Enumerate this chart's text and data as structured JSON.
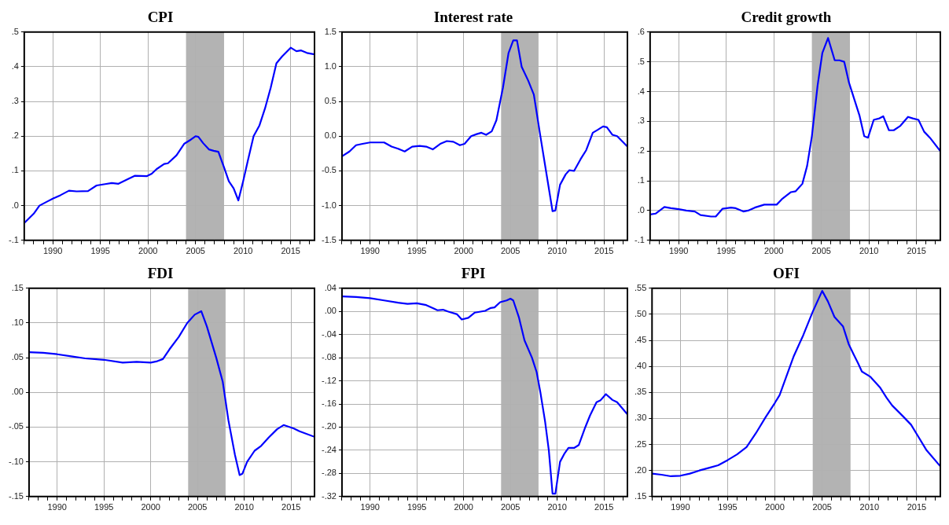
{
  "chart_data": [
    {
      "type": "line",
      "title": "CPI",
      "xlim": [
        1987,
        2017.5
      ],
      "ylim": [
        -0.1,
        0.5
      ],
      "yticks": [
        {
          "value": -0.1,
          "label": "-.1"
        },
        {
          "value": 0,
          "label": ".0"
        },
        {
          "value": 0.1,
          "label": ".1"
        },
        {
          "value": 0.2,
          "label": ".2"
        },
        {
          "value": 0.3,
          "label": ".3"
        },
        {
          "value": 0.4,
          "label": ".4"
        },
        {
          "value": 0.5,
          "label": ".5"
        }
      ],
      "xticks": [
        {
          "value": 1987,
          "label": null
        },
        {
          "value": 1988,
          "label": null
        },
        {
          "value": 1989,
          "label": null
        },
        1990,
        {
          "value": 1991,
          "label": null
        },
        {
          "value": 1992,
          "label": null
        },
        {
          "value": 1993,
          "label": null
        },
        {
          "value": 1994,
          "label": null
        },
        1995,
        {
          "value": 1996,
          "label": null
        },
        {
          "value": 1997,
          "label": null
        },
        {
          "value": 1998,
          "label": null
        },
        {
          "value": 1999,
          "label": null
        },
        2000,
        {
          "value": 2001,
          "label": null
        },
        {
          "value": 2002,
          "label": null
        },
        {
          "value": 2003,
          "label": null
        },
        {
          "value": 2004,
          "label": null
        },
        2005,
        {
          "value": 2006,
          "label": null
        },
        {
          "value": 2007,
          "label": null
        },
        {
          "value": 2008,
          "label": null
        },
        {
          "value": 2009,
          "label": null
        },
        2010,
        {
          "value": 2011,
          "label": null
        },
        {
          "value": 2012,
          "label": null
        },
        {
          "value": 2013,
          "label": null
        },
        {
          "value": 2014,
          "label": null
        },
        2015,
        {
          "value": 2016,
          "label": null
        },
        {
          "value": 2017,
          "label": null
        }
      ],
      "grid": true,
      "legend": false,
      "marker": "none",
      "line_style": "solid",
      "bands": [
        {
          "axis": "x",
          "from": 2004,
          "to": 2008,
          "color": "#b3b3b3"
        }
      ],
      "series": [
        {
          "color": "#0000ff",
          "x": [
            1987,
            1988,
            1988.6,
            1989.5,
            1990,
            1990.8,
            1991.7,
            1992.5,
            1993.7,
            1994.6,
            1995.5,
            1996.2,
            1996.9,
            1998,
            1998.6,
            1999.9,
            2000.4,
            2000.9,
            2001.7,
            2002.1,
            2003,
            2003.8,
            2004.5,
            2005,
            2005.3,
            2005.8,
            2006.4,
            2006.9,
            2007.4,
            2008,
            2008.5,
            2009,
            2009.5,
            2010,
            2010.5,
            2011.1,
            2011.7,
            2012.3,
            2012.9,
            2013.5,
            2014.1,
            2015,
            2015.6,
            2016.1,
            2016.7,
            2017.5
          ],
          "values": [
            -0.05,
            -0.023,
            0,
            0.013,
            0.02,
            0.03,
            0.043,
            0.041,
            0.042,
            0.058,
            0.062,
            0.065,
            0.063,
            0.078,
            0.086,
            0.085,
            0.092,
            0.105,
            0.12,
            0.122,
            0.145,
            0.178,
            0.19,
            0.2,
            0.198,
            0.18,
            0.162,
            0.158,
            0.155,
            0.11,
            0.07,
            0.05,
            0.015,
            0.07,
            0.13,
            0.2,
            0.23,
            0.28,
            0.34,
            0.41,
            0.43,
            0.455,
            0.445,
            0.447,
            0.44,
            0.436
          ]
        }
      ]
    },
    {
      "type": "line",
      "title": "Interest rate",
      "xlim": [
        1987,
        2017.5
      ],
      "ylim": [
        -1.5,
        1.5
      ],
      "yticks": [
        {
          "value": -1.5,
          "label": "-1.5"
        },
        {
          "value": -1,
          "label": "-1.0"
        },
        {
          "value": -0.5,
          "label": "-0.5"
        },
        {
          "value": 0,
          "label": "0.0"
        },
        {
          "value": 0.5,
          "label": "0.5"
        },
        {
          "value": 1,
          "label": "1.0"
        },
        {
          "value": 1.5,
          "label": "1.5"
        }
      ],
      "xticks": [
        {
          "value": 1987,
          "label": null
        },
        {
          "value": 1988,
          "label": null
        },
        {
          "value": 1989,
          "label": null
        },
        1990,
        {
          "value": 1991,
          "label": null
        },
        {
          "value": 1992,
          "label": null
        },
        {
          "value": 1993,
          "label": null
        },
        {
          "value": 1994,
          "label": null
        },
        1995,
        {
          "value": 1996,
          "label": null
        },
        {
          "value": 1997,
          "label": null
        },
        {
          "value": 1998,
          "label": null
        },
        {
          "value": 1999,
          "label": null
        },
        2000,
        {
          "value": 2001,
          "label": null
        },
        {
          "value": 2002,
          "label": null
        },
        {
          "value": 2003,
          "label": null
        },
        {
          "value": 2004,
          "label": null
        },
        2005,
        {
          "value": 2006,
          "label": null
        },
        {
          "value": 2007,
          "label": null
        },
        {
          "value": 2008,
          "label": null
        },
        {
          "value": 2009,
          "label": null
        },
        2010,
        {
          "value": 2011,
          "label": null
        },
        {
          "value": 2012,
          "label": null
        },
        {
          "value": 2013,
          "label": null
        },
        {
          "value": 2014,
          "label": null
        },
        2015,
        {
          "value": 2016,
          "label": null
        },
        {
          "value": 2017,
          "label": null
        }
      ],
      "grid": true,
      "legend": false,
      "marker": "none",
      "line_style": "solid",
      "bands": [
        {
          "axis": "x",
          "from": 2004,
          "to": 2008,
          "color": "#b3b3b3"
        }
      ],
      "series": [
        {
          "color": "#0000ff",
          "x": [
            1987,
            1987.8,
            1988.5,
            1989.2,
            1990,
            1990.8,
            1991.5,
            1992.3,
            1993,
            1993.7,
            1994.5,
            1995.3,
            1996,
            1996.7,
            1997.5,
            1998.2,
            1998.9,
            1999.6,
            2000.1,
            2000.8,
            2001.4,
            2001.9,
            2002.4,
            2003,
            2003.5,
            2004.2,
            2004.8,
            2005.3,
            2005.7,
            2006.2,
            2006.9,
            2007.5,
            2008.2,
            2008.8,
            2009.5,
            2009.8,
            2010.3,
            2010.9,
            2011.3,
            2011.8,
            2012.5,
            2013.1,
            2013.8,
            2014.3,
            2014.9,
            2015.3,
            2015.9,
            2016.4,
            2017.5
          ],
          "values": [
            -0.29,
            -0.22,
            -0.13,
            -0.11,
            -0.09,
            -0.09,
            -0.09,
            -0.15,
            -0.18,
            -0.22,
            -0.15,
            -0.14,
            -0.15,
            -0.19,
            -0.11,
            -0.07,
            -0.08,
            -0.13,
            -0.11,
            0,
            0.03,
            0.05,
            0.02,
            0.07,
            0.23,
            0.7,
            1.2,
            1.38,
            1.38,
            1,
            0.8,
            0.6,
            0,
            -0.5,
            -1.08,
            -1.07,
            -0.7,
            -0.55,
            -0.49,
            -0.5,
            -0.33,
            -0.2,
            0.05,
            0.09,
            0.14,
            0.13,
            0.02,
            0,
            -0.15
          ]
        }
      ]
    },
    {
      "type": "line",
      "title": "Credit growth",
      "xlim": [
        1987,
        2017.5
      ],
      "ylim": [
        -0.1,
        0.6
      ],
      "yticks": [
        {
          "value": -0.1,
          "label": "-.1"
        },
        {
          "value": 0,
          "label": ".0"
        },
        {
          "value": 0.1,
          "label": ".1"
        },
        {
          "value": 0.2,
          "label": ".2"
        },
        {
          "value": 0.3,
          "label": ".3"
        },
        {
          "value": 0.4,
          "label": ".4"
        },
        {
          "value": 0.5,
          "label": ".5"
        },
        {
          "value": 0.6,
          "label": ".6"
        }
      ],
      "xticks": [
        {
          "value": 1987,
          "label": null
        },
        {
          "value": 1988,
          "label": null
        },
        {
          "value": 1989,
          "label": null
        },
        1990,
        {
          "value": 1991,
          "label": null
        },
        {
          "value": 1992,
          "label": null
        },
        {
          "value": 1993,
          "label": null
        },
        {
          "value": 1994,
          "label": null
        },
        1995,
        {
          "value": 1996,
          "label": null
        },
        {
          "value": 1997,
          "label": null
        },
        {
          "value": 1998,
          "label": null
        },
        {
          "value": 1999,
          "label": null
        },
        2000,
        {
          "value": 2001,
          "label": null
        },
        {
          "value": 2002,
          "label": null
        },
        {
          "value": 2003,
          "label": null
        },
        {
          "value": 2004,
          "label": null
        },
        2005,
        {
          "value": 2006,
          "label": null
        },
        {
          "value": 2007,
          "label": null
        },
        {
          "value": 2008,
          "label": null
        },
        {
          "value": 2009,
          "label": null
        },
        2010,
        {
          "value": 2011,
          "label": null
        },
        {
          "value": 2012,
          "label": null
        },
        {
          "value": 2013,
          "label": null
        },
        {
          "value": 2014,
          "label": null
        },
        2015,
        {
          "value": 2016,
          "label": null
        },
        {
          "value": 2017,
          "label": null
        }
      ],
      "grid": true,
      "legend": false,
      "marker": "none",
      "line_style": "solid",
      "bands": [
        {
          "axis": "x",
          "from": 2004,
          "to": 2008,
          "color": "#b3b3b3"
        }
      ],
      "series": [
        {
          "color": "#0000ff",
          "x": [
            1987,
            1987.6,
            1988.5,
            1989.2,
            1990,
            1990.8,
            1991.7,
            1992.3,
            1993.4,
            1993.9,
            1994.6,
            1995.5,
            1996,
            1996.8,
            1997.3,
            1998,
            1999,
            2000.3,
            2000.9,
            2001.8,
            2002.3,
            2003,
            2003.5,
            2004,
            2004.6,
            2005.1,
            2005.7,
            2006.4,
            2006.9,
            2007.4,
            2007.9,
            2008.5,
            2009,
            2009.5,
            2009.9,
            2010.5,
            2011.1,
            2011.5,
            2012.1,
            2012.6,
            2013.3,
            2014.1,
            2014.6,
            2015.2,
            2015.8,
            2016.4,
            2017.5
          ],
          "values": [
            -0.013,
            -0.01,
            0.012,
            0.008,
            0.005,
            0,
            -0.003,
            -0.015,
            -0.02,
            -0.02,
            0.006,
            0.01,
            0.008,
            -0.003,
            0,
            0.01,
            0.02,
            0.02,
            0.04,
            0.062,
            0.065,
            0.09,
            0.15,
            0.25,
            0.42,
            0.53,
            0.58,
            0.505,
            0.505,
            0.5,
            0.43,
            0.37,
            0.32,
            0.25,
            0.245,
            0.305,
            0.31,
            0.317,
            0.27,
            0.27,
            0.285,
            0.315,
            0.31,
            0.305,
            0.265,
            0.245,
            0.2
          ]
        }
      ]
    },
    {
      "type": "line",
      "title": "FDI",
      "xlim": [
        1987,
        2017.5
      ],
      "ylim": [
        -0.15,
        0.15
      ],
      "yticks": [
        {
          "value": -0.15,
          "label": "-.15"
        },
        {
          "value": -0.1,
          "label": "-.10"
        },
        {
          "value": -0.05,
          "label": "-.05"
        },
        {
          "value": 0,
          "label": ".00"
        },
        {
          "value": 0.05,
          "label": ".05"
        },
        {
          "value": 0.1,
          "label": ".10"
        },
        {
          "value": 0.15,
          "label": ".15"
        }
      ],
      "xticks": [
        {
          "value": 1987,
          "label": null
        },
        {
          "value": 1988,
          "label": null
        },
        {
          "value": 1989,
          "label": null
        },
        1990,
        {
          "value": 1991,
          "label": null
        },
        {
          "value": 1992,
          "label": null
        },
        {
          "value": 1993,
          "label": null
        },
        {
          "value": 1994,
          "label": null
        },
        1995,
        {
          "value": 1996,
          "label": null
        },
        {
          "value": 1997,
          "label": null
        },
        {
          "value": 1998,
          "label": null
        },
        {
          "value": 1999,
          "label": null
        },
        2000,
        {
          "value": 2001,
          "label": null
        },
        {
          "value": 2002,
          "label": null
        },
        {
          "value": 2003,
          "label": null
        },
        {
          "value": 2004,
          "label": null
        },
        2005,
        {
          "value": 2006,
          "label": null
        },
        {
          "value": 2007,
          "label": null
        },
        {
          "value": 2008,
          "label": null
        },
        {
          "value": 2009,
          "label": null
        },
        2010,
        {
          "value": 2011,
          "label": null
        },
        {
          "value": 2012,
          "label": null
        },
        {
          "value": 2013,
          "label": null
        },
        {
          "value": 2014,
          "label": null
        },
        2015,
        {
          "value": 2016,
          "label": null
        },
        {
          "value": 2017,
          "label": null
        }
      ],
      "grid": true,
      "legend": false,
      "marker": "none",
      "line_style": "solid",
      "bands": [
        {
          "axis": "x",
          "from": 2004,
          "to": 2008,
          "color": "#b3b3b3"
        }
      ],
      "series": [
        {
          "color": "#0000ff",
          "x": [
            1987,
            1988.5,
            1990,
            1991.5,
            1993,
            1995,
            1997,
            1998.5,
            2000,
            2000.7,
            2001.3,
            2002,
            2003,
            2003.9,
            2004.7,
            2005.4,
            2006,
            2007,
            2007.7,
            2008.3,
            2009,
            2009.5,
            2009.8,
            2010.3,
            2011.1,
            2011.8,
            2012.6,
            2013.5,
            2014.2,
            2015.3,
            2015.9,
            2017.5
          ],
          "values": [
            0.058,
            0.057,
            0.055,
            0.052,
            0.049,
            0.047,
            0.043,
            0.044,
            0.043,
            0.045,
            0.048,
            0.062,
            0.08,
            0.1,
            0.112,
            0.117,
            0.095,
            0.05,
            0.015,
            -0.04,
            -0.09,
            -0.119,
            -0.117,
            -0.1,
            -0.084,
            -0.077,
            -0.065,
            -0.053,
            -0.047,
            -0.052,
            -0.056,
            -0.064
          ]
        }
      ]
    },
    {
      "type": "line",
      "title": "FPI",
      "xlim": [
        1987,
        2017.5
      ],
      "ylim": [
        -0.32,
        0.04
      ],
      "yticks": [
        {
          "value": -0.32,
          "label": "-.32"
        },
        {
          "value": -0.28,
          "label": "-.28"
        },
        {
          "value": -0.24,
          "label": "-.24"
        },
        {
          "value": -0.2,
          "label": "-.20"
        },
        {
          "value": -0.16,
          "label": "-.16"
        },
        {
          "value": -0.12,
          "label": "-.12"
        },
        {
          "value": -0.08,
          "label": "-.08"
        },
        {
          "value": -0.04,
          "label": "-.04"
        },
        {
          "value": 0,
          "label": ".00"
        },
        {
          "value": 0.04,
          "label": ".04"
        }
      ],
      "xticks": [
        {
          "value": 1987,
          "label": null
        },
        {
          "value": 1988,
          "label": null
        },
        {
          "value": 1989,
          "label": null
        },
        1990,
        {
          "value": 1991,
          "label": null
        },
        {
          "value": 1992,
          "label": null
        },
        {
          "value": 1993,
          "label": null
        },
        {
          "value": 1994,
          "label": null
        },
        1995,
        {
          "value": 1996,
          "label": null
        },
        {
          "value": 1997,
          "label": null
        },
        {
          "value": 1998,
          "label": null
        },
        {
          "value": 1999,
          "label": null
        },
        2000,
        {
          "value": 2001,
          "label": null
        },
        {
          "value": 2002,
          "label": null
        },
        {
          "value": 2003,
          "label": null
        },
        {
          "value": 2004,
          "label": null
        },
        2005,
        {
          "value": 2006,
          "label": null
        },
        {
          "value": 2007,
          "label": null
        },
        {
          "value": 2008,
          "label": null
        },
        {
          "value": 2009,
          "label": null
        },
        2010,
        {
          "value": 2011,
          "label": null
        },
        {
          "value": 2012,
          "label": null
        },
        {
          "value": 2013,
          "label": null
        },
        {
          "value": 2014,
          "label": null
        },
        2015,
        {
          "value": 2016,
          "label": null
        },
        {
          "value": 2017,
          "label": null
        }
      ],
      "grid": true,
      "legend": false,
      "marker": "none",
      "line_style": "solid",
      "bands": [
        {
          "axis": "x",
          "from": 2004,
          "to": 2008,
          "color": "#b3b3b3"
        }
      ],
      "series": [
        {
          "color": "#0000ff",
          "x": [
            1987,
            1988.5,
            1990,
            1991.5,
            1993,
            1994,
            1995,
            1996,
            1996.8,
            1997.2,
            1997.8,
            1998.3,
            1999.3,
            1999.8,
            2000.5,
            2001.2,
            2002.3,
            2002.9,
            2003.3,
            2003.9,
            2004.6,
            2005,
            2005.3,
            2005.9,
            2006.5,
            2007.3,
            2007.8,
            2008.2,
            2008.7,
            2009.1,
            2009.5,
            2009.8,
            2010.3,
            2010.8,
            2011.2,
            2011.8,
            2012.3,
            2013,
            2013.5,
            2014.2,
            2014.6,
            2015.2,
            2015.9,
            2016.4,
            2017.5
          ],
          "values": [
            0.026,
            0.025,
            0.023,
            0.019,
            0.015,
            0.013,
            0.014,
            0.011,
            0.005,
            0.002,
            0.003,
            0,
            -0.005,
            -0.014,
            -0.011,
            -0.002,
            0.001,
            0.006,
            0.007,
            0.016,
            0.019,
            0.022,
            0.019,
            -0.01,
            -0.05,
            -0.08,
            -0.105,
            -0.14,
            -0.19,
            -0.24,
            -0.315,
            -0.315,
            -0.26,
            -0.245,
            -0.236,
            -0.236,
            -0.231,
            -0.2,
            -0.18,
            -0.157,
            -0.154,
            -0.143,
            -0.153,
            -0.157,
            -0.178
          ]
        }
      ]
    },
    {
      "type": "line",
      "title": "OFI",
      "xlim": [
        1987,
        2017.5
      ],
      "ylim": [
        0.15,
        0.55
      ],
      "yticks": [
        {
          "value": 0.15,
          "label": ".15"
        },
        {
          "value": 0.2,
          "label": ".20"
        },
        {
          "value": 0.25,
          "label": ".25"
        },
        {
          "value": 0.3,
          "label": ".30"
        },
        {
          "value": 0.35,
          "label": ".35"
        },
        {
          "value": 0.4,
          "label": ".40"
        },
        {
          "value": 0.45,
          "label": ".45"
        },
        {
          "value": 0.5,
          "label": ".50"
        },
        {
          "value": 0.55,
          "label": ".55"
        }
      ],
      "xticks": [
        {
          "value": 1987,
          "label": null
        },
        {
          "value": 1988,
          "label": null
        },
        {
          "value": 1989,
          "label": null
        },
        1990,
        {
          "value": 1991,
          "label": null
        },
        {
          "value": 1992,
          "label": null
        },
        {
          "value": 1993,
          "label": null
        },
        {
          "value": 1994,
          "label": null
        },
        1995,
        {
          "value": 1996,
          "label": null
        },
        {
          "value": 1997,
          "label": null
        },
        {
          "value": 1998,
          "label": null
        },
        {
          "value": 1999,
          "label": null
        },
        2000,
        {
          "value": 2001,
          "label": null
        },
        {
          "value": 2002,
          "label": null
        },
        {
          "value": 2003,
          "label": null
        },
        {
          "value": 2004,
          "label": null
        },
        2005,
        {
          "value": 2006,
          "label": null
        },
        {
          "value": 2007,
          "label": null
        },
        {
          "value": 2008,
          "label": null
        },
        {
          "value": 2009,
          "label": null
        },
        2010,
        {
          "value": 2011,
          "label": null
        },
        {
          "value": 2012,
          "label": null
        },
        {
          "value": 2013,
          "label": null
        },
        {
          "value": 2014,
          "label": null
        },
        2015,
        {
          "value": 2016,
          "label": null
        },
        {
          "value": 2017,
          "label": null
        }
      ],
      "grid": true,
      "legend": false,
      "marker": "none",
      "line_style": "solid",
      "bands": [
        {
          "axis": "x",
          "from": 2004,
          "to": 2008,
          "color": "#b3b3b3"
        }
      ],
      "series": [
        {
          "color": "#0000ff",
          "x": [
            1987,
            1988,
            1989,
            1990,
            1991,
            1992,
            1993,
            1994,
            1995,
            1996,
            1997,
            1998,
            1999,
            2000,
            2000.5,
            2001.2,
            2002,
            2003,
            2004,
            2005,
            2005.6,
            2006.3,
            2007.2,
            2007.8,
            2008.3,
            2008.8,
            2009.2,
            2010.1,
            2011.1,
            2011.8,
            2012.4,
            2013.5,
            2014.4,
            2015,
            2016,
            2017.5
          ],
          "values": [
            0.194,
            0.192,
            0.189,
            0.19,
            0.194,
            0.2,
            0.205,
            0.21,
            0.22,
            0.231,
            0.245,
            0.272,
            0.302,
            0.33,
            0.345,
            0.38,
            0.42,
            0.46,
            0.505,
            0.545,
            0.525,
            0.495,
            0.477,
            0.443,
            0.424,
            0.406,
            0.39,
            0.38,
            0.36,
            0.34,
            0.325,
            0.305,
            0.288,
            0.27,
            0.24,
            0.208
          ]
        }
      ]
    }
  ]
}
